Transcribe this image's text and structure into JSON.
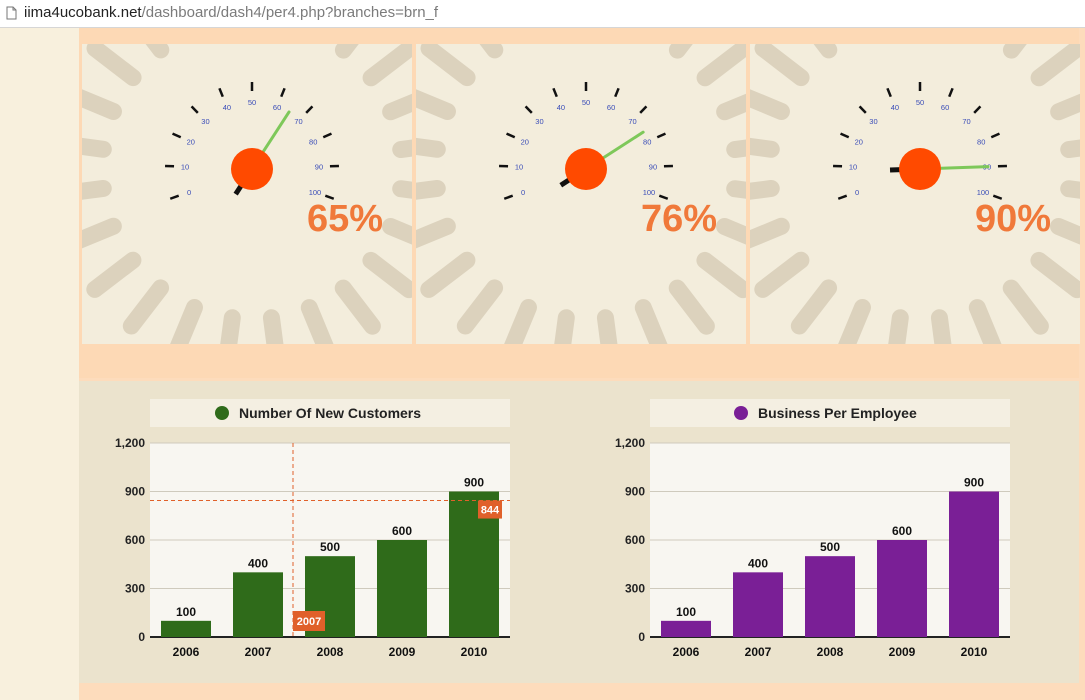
{
  "browser": {
    "url_host": "iima4ucobank.net",
    "url_path": "/dashboard/dash4/per4.php?branches=brn_f"
  },
  "gauges": [
    {
      "value": 65,
      "label": "65%"
    },
    {
      "value": 76,
      "label": "76%"
    },
    {
      "value": 90,
      "label": "90%"
    }
  ],
  "gauge_scale": {
    "min": 0,
    "max": 100,
    "ticks": [
      "0",
      "10",
      "20",
      "30",
      "40",
      "50",
      "60",
      "70",
      "80",
      "90",
      "100"
    ]
  },
  "colors": {
    "accent": "#f0793a",
    "needle_hub": "#ff4a00",
    "needle": "#7ec85a",
    "series1": "#2f6b1a",
    "series2": "#7a1f96",
    "crosshair": "#e0602a"
  },
  "chart_data": [
    {
      "type": "bar",
      "title": "Number Of New Customers",
      "categories": [
        "2006",
        "2007",
        "2008",
        "2009",
        "2010"
      ],
      "values": [
        100,
        400,
        500,
        600,
        900
      ],
      "value_labels": [
        "100",
        "400",
        "500",
        "600",
        "900"
      ],
      "ylim": [
        0,
        1200
      ],
      "yticks": [
        "0",
        "300",
        "600",
        "900",
        "1,200"
      ],
      "grid": true,
      "legend": "top",
      "crosshair": {
        "x_label": "2007",
        "y_label": "844",
        "y_value": 844
      }
    },
    {
      "type": "bar",
      "title": "Business Per Employee",
      "categories": [
        "2006",
        "2007",
        "2008",
        "2009",
        "2010"
      ],
      "values": [
        100,
        400,
        500,
        600,
        900
      ],
      "value_labels": [
        "100",
        "400",
        "500",
        "600",
        "900"
      ],
      "ylim": [
        0,
        1200
      ],
      "yticks": [
        "0",
        "300",
        "600",
        "900",
        "1,200"
      ],
      "grid": true,
      "legend": "top"
    }
  ]
}
